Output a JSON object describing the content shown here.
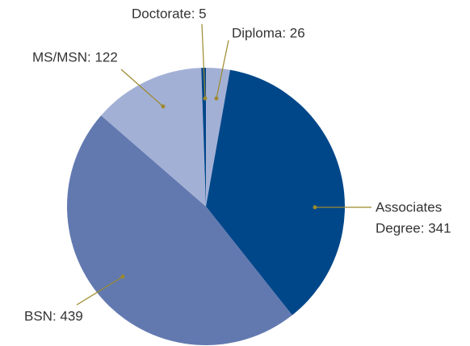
{
  "chart_data": {
    "type": "pie",
    "labels": [
      [
        "Diploma: 26"
      ],
      [
        "Associates",
        "Degree: 341"
      ],
      [
        "BSN: 439"
      ],
      [
        "MS/MSN: 122"
      ],
      [
        "Doctorate: 5"
      ]
    ],
    "values": [
      26,
      341,
      439,
      122,
      5
    ],
    "colors": [
      "#a3b0d6",
      "#00478a",
      "#6279b0",
      "#a3b0d6",
      "#00478a"
    ]
  }
}
